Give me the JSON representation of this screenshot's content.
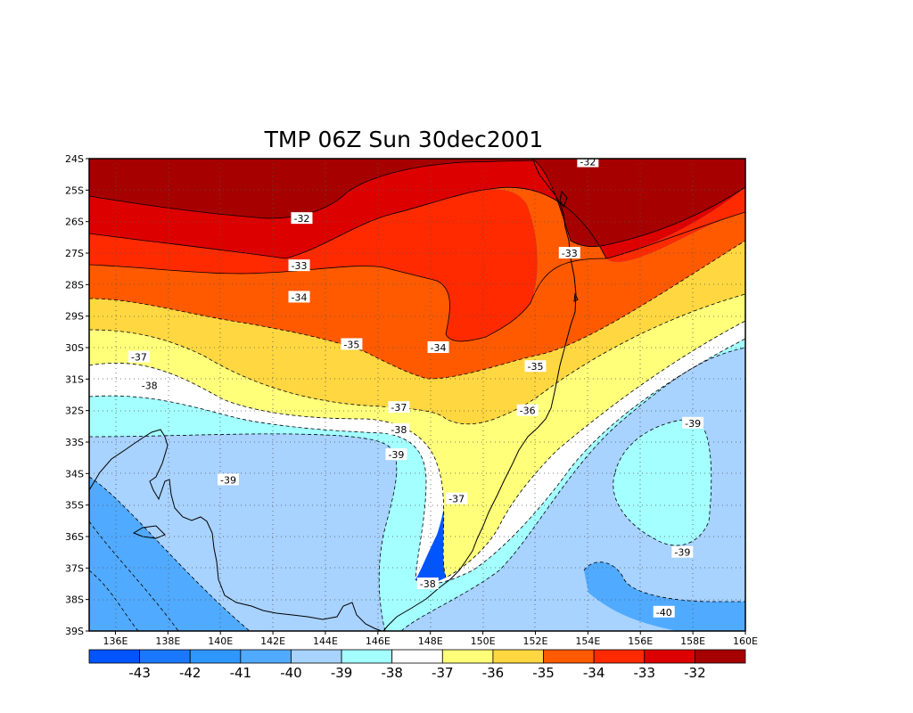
{
  "chart_data": {
    "type": "contour",
    "title": "TMP 06Z Sun 30dec2001",
    "variable": "TMP",
    "time": "06Z Sun 30dec2001",
    "xlim": [
      135,
      160
    ],
    "ylim": [
      -39,
      -24
    ],
    "x_ticks": [
      "136E",
      "138E",
      "140E",
      "142E",
      "144E",
      "146E",
      "148E",
      "150E",
      "152E",
      "154E",
      "156E",
      "158E",
      "160E"
    ],
    "x_tick_values": [
      136,
      138,
      140,
      142,
      144,
      146,
      148,
      150,
      152,
      154,
      156,
      158,
      160
    ],
    "y_ticks": [
      "24S",
      "25S",
      "26S",
      "27S",
      "28S",
      "29S",
      "30S",
      "31S",
      "32S",
      "33S",
      "34S",
      "35S",
      "36S",
      "37S",
      "38S",
      "39S"
    ],
    "y_tick_values": [
      -24,
      -25,
      -26,
      -27,
      -28,
      -29,
      -30,
      -31,
      -32,
      -33,
      -34,
      -35,
      -36,
      -37,
      -38,
      -39
    ],
    "grid": "dotted",
    "colorbar": {
      "labels": [
        "-43",
        "-42",
        "-41",
        "-40",
        "-39",
        "-38",
        "-37",
        "-36",
        "-35",
        "-34",
        "-33",
        "-32"
      ],
      "colors": [
        "#0055ff",
        "#1a78ff",
        "#2e96ff",
        "#50aaff",
        "#a8d2ff",
        "#a4ffff",
        "#ffffff",
        "#ffff7a",
        "#ffd740",
        "#ff5a00",
        "#ff2a00",
        "#dd0000",
        "#a60000"
      ]
    },
    "contour_levels": [
      -42,
      -41,
      -40,
      -39,
      -38,
      -37,
      -36,
      -35,
      -34,
      -33,
      -32
    ],
    "contour_labels": [
      {
        "text": "-32",
        "lon": 154.0,
        "lat": -24.1
      },
      {
        "text": "-32",
        "lon": 143.1,
        "lat": -25.9
      },
      {
        "text": "-33",
        "lon": 143.0,
        "lat": -27.4
      },
      {
        "text": "-33",
        "lon": 153.3,
        "lat": -27.0
      },
      {
        "text": "-34",
        "lon": 143.0,
        "lat": -28.4
      },
      {
        "text": "-34",
        "lon": 148.3,
        "lat": -30.0
      },
      {
        "text": "-35",
        "lon": 145.0,
        "lat": -29.9
      },
      {
        "text": "-35",
        "lon": 152.0,
        "lat": -30.6
      },
      {
        "text": "-36",
        "lon": 151.7,
        "lat": -32.0
      },
      {
        "text": "-37",
        "lon": 136.9,
        "lat": -30.3
      },
      {
        "text": "-37",
        "lon": 146.8,
        "lat": -31.9
      },
      {
        "text": "-37",
        "lon": 149.0,
        "lat": -34.8
      },
      {
        "text": "-38",
        "lon": 137.3,
        "lat": -31.2
      },
      {
        "text": "-38",
        "lon": 146.8,
        "lat": -32.6
      },
      {
        "text": "-38",
        "lon": 147.9,
        "lat": -37.5
      },
      {
        "text": "-39",
        "lon": 146.7,
        "lat": -33.4
      },
      {
        "text": "-39",
        "lon": 140.3,
        "lat": -34.2
      },
      {
        "text": "-39",
        "lon": 158.0,
        "lat": -32.4
      },
      {
        "text": "-39",
        "lon": 157.6,
        "lat": -36.5
      },
      {
        "text": "-40",
        "lon": 156.9,
        "lat": -38.4
      }
    ]
  }
}
